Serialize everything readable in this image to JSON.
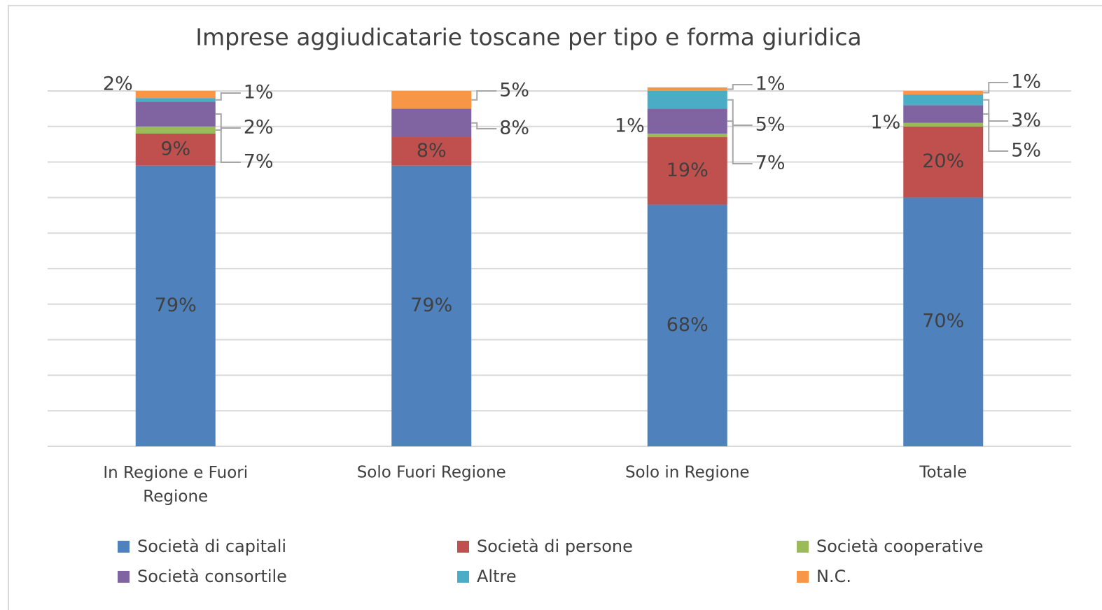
{
  "chart_data": {
    "type": "stacked_bar",
    "title": "Imprese aggiudicatarie toscane per tipo e forma giuridica",
    "categories": [
      "In Regione e Fuori Regione",
      "Solo Fuori Regione",
      "Solo in Regione",
      "Totale"
    ],
    "series": [
      {
        "name": "Società di capitali",
        "color": "#4f81bd",
        "values": [
          79,
          79,
          68,
          70
        ],
        "value_labels": [
          "79%",
          "79%",
          "68%",
          "70%"
        ]
      },
      {
        "name": "Società di persone",
        "color": "#c0504d",
        "values": [
          9,
          8,
          19,
          20
        ],
        "value_labels": [
          "9%",
          "8%",
          "19%",
          "20%"
        ]
      },
      {
        "name": "Società cooperative",
        "color": "#9bbb59",
        "values": [
          2,
          0,
          1,
          1
        ],
        "value_labels": [
          "2%",
          null,
          "1%",
          "1%"
        ]
      },
      {
        "name": "Società consortile",
        "color": "#8064a2",
        "values": [
          7,
          8,
          7,
          5
        ],
        "value_labels": [
          "7%",
          "8%",
          "7%",
          "5%"
        ]
      },
      {
        "name": "Altre",
        "color": "#4bacc6",
        "values": [
          1,
          0,
          5,
          3
        ],
        "value_labels": [
          "1%",
          null,
          "5%",
          "3%"
        ]
      },
      {
        "name": "N.C.",
        "color": "#f79646",
        "values": [
          2,
          5,
          1,
          1
        ],
        "value_labels": [
          "2%",
          "5%",
          "1%",
          "1%"
        ]
      }
    ],
    "ylim": [
      0,
      100
    ],
    "yticks": [
      0,
      10,
      20,
      30,
      40,
      50,
      60,
      70,
      80,
      90,
      100
    ],
    "grid": true
  }
}
